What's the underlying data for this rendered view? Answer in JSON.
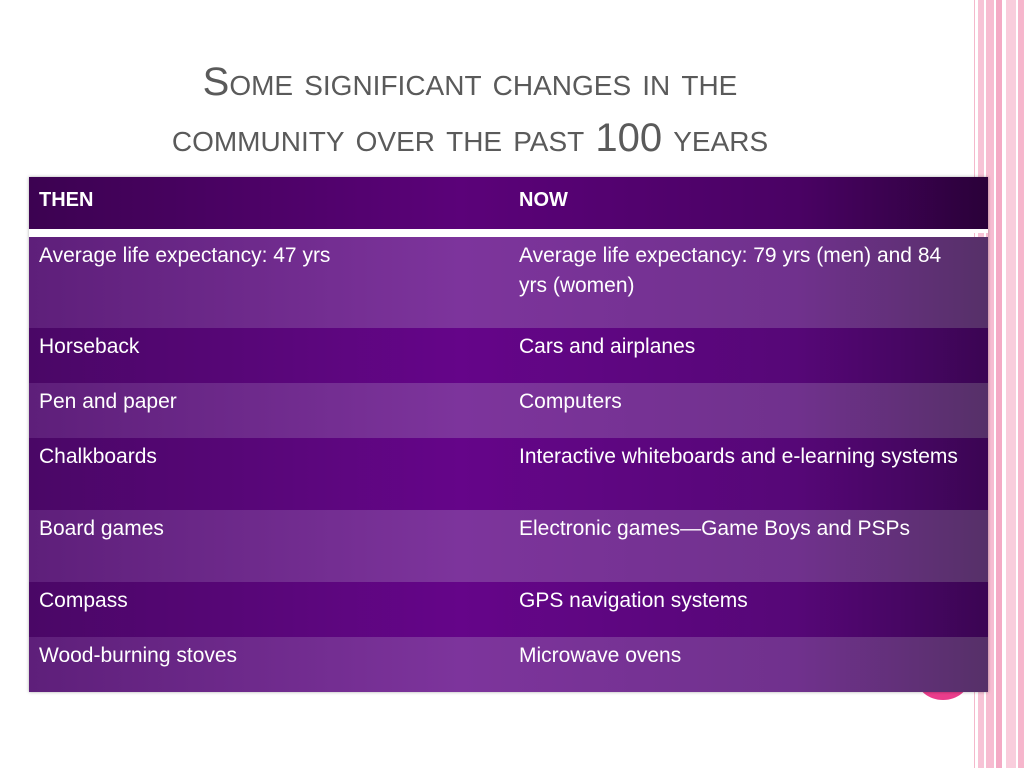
{
  "slide": {
    "title_line1": "Some significant changes in the",
    "title_line2": "community over the past 100 years"
  },
  "table": {
    "headers": [
      "THEN",
      "NOW"
    ],
    "rows": [
      [
        "Average life expectancy: 47 yrs",
        "Average life expectancy: 79 yrs (men) and 84 yrs (women)"
      ],
      [
        "Horseback",
        "Cars and airplanes"
      ],
      [
        "Pen and paper",
        "Computers"
      ],
      [
        "Chalkboards",
        "Interactive whiteboards and e-learning systems"
      ],
      [
        "Board games",
        "Electronic games—Game Boys and PSPs"
      ],
      [
        "Compass",
        "GPS navigation systems"
      ],
      [
        "Wood-burning stoves",
        "Microwave ovens"
      ]
    ]
  },
  "theme": {
    "header_color": "#4a0264",
    "row_dark": "#650589",
    "row_light": "#7d349c",
    "accent_pink": "#ea3d8c",
    "title_color": "#5a5a5a"
  }
}
